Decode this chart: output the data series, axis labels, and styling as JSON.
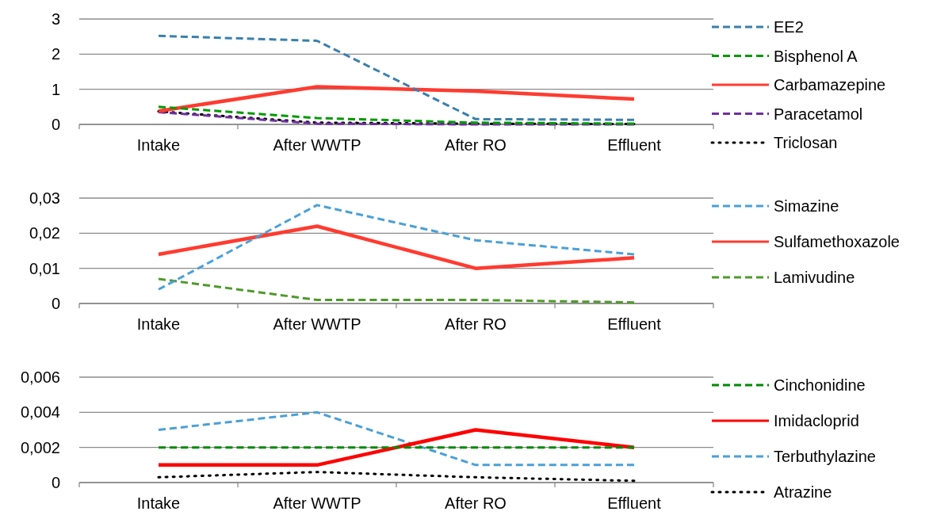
{
  "chart_data": [
    {
      "type": "line",
      "categories": [
        "Intake",
        "After WWTP",
        "After RO",
        "Effluent"
      ],
      "ylim": [
        0,
        3
      ],
      "yticks": [
        0,
        1,
        2,
        3
      ],
      "grid": "y",
      "legend": "right",
      "marker": "none",
      "series": [
        {
          "name": "EE2",
          "color": "#3a7fad",
          "line_style": "dashed",
          "values": [
            2.52,
            2.38,
            0.15,
            0.13
          ]
        },
        {
          "name": "Bisphenol A",
          "color": "#009a00",
          "line_style": "dashed",
          "values": [
            0.5,
            0.18,
            0.05,
            0.02
          ]
        },
        {
          "name": "Carbamazepine",
          "color": "#ff3b30",
          "line_style": "solid",
          "values": [
            0.38,
            1.07,
            0.95,
            0.72
          ]
        },
        {
          "name": "Paracetamol",
          "color": "#7030a0",
          "line_style": "dashed",
          "values": [
            0.35,
            0.02,
            0,
            0
          ]
        },
        {
          "name": "Triclosan",
          "color": "#000000",
          "line_style": "dotted",
          "values": [
            0.37,
            0.05,
            0.02,
            0.01
          ]
        }
      ]
    },
    {
      "type": "line",
      "categories": [
        "Intake",
        "After WWTP",
        "After RO",
        "Effluent"
      ],
      "ylim": [
        0,
        0.03
      ],
      "yticks": [
        0,
        {
          "value": 0.01,
          "label": "0,01"
        },
        {
          "value": 0.02,
          "label": "0,02"
        },
        {
          "value": 0.03,
          "label": "0,03"
        }
      ],
      "grid": "y",
      "legend": "right",
      "marker": "none",
      "series": [
        {
          "name": "Simazine",
          "color": "#4aa0d8",
          "line_style": "dashed",
          "values": [
            0.004,
            0.028,
            0.018,
            0.014
          ]
        },
        {
          "name": "Sulfamethoxazole",
          "color": "#ff3b30",
          "line_style": "solid",
          "values": [
            0.014,
            0.022,
            0.01,
            0.013
          ]
        },
        {
          "name": "Lamivudine",
          "color": "#4f9a2a",
          "line_style": "dashed",
          "values": [
            0.007,
            0.001,
            0.001,
            0.0003
          ]
        }
      ]
    },
    {
      "type": "line",
      "categories": [
        "Intake",
        "After WWTP",
        "After RO",
        "Effluent"
      ],
      "ylim": [
        0,
        0.006
      ],
      "yticks": [
        0,
        {
          "value": 0.002,
          "label": "0,002"
        },
        {
          "value": 0.004,
          "label": "0,004"
        },
        {
          "value": 0.006,
          "label": "0,006"
        }
      ],
      "grid": "y",
      "legend": "right",
      "marker": "none",
      "series": [
        {
          "name": "Cinchonidine",
          "color": "#008a00",
          "line_style": "dashed",
          "values": [
            0.002,
            0.002,
            0.002,
            0.002
          ]
        },
        {
          "name": "Imidacloprid",
          "color": "#ff0000",
          "line_style": "solid",
          "values": [
            0.001,
            0.001,
            0.003,
            0.002
          ]
        },
        {
          "name": "Terbuthylazine",
          "color": "#4aa0d8",
          "line_style": "dashed",
          "values": [
            0.003,
            0.004,
            0.001,
            0.001
          ]
        },
        {
          "name": "Atrazine",
          "color": "#000000",
          "line_style": "dotted",
          "values": [
            0.0003,
            0.0006,
            0.0003,
            0.0001
          ]
        }
      ]
    }
  ]
}
